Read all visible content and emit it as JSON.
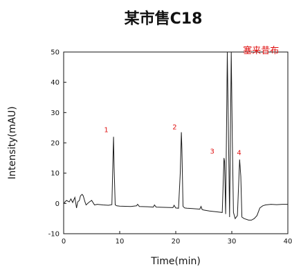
{
  "chart_data": {
    "type": "line",
    "title": "某市售C18",
    "xlabel": "Time(min)",
    "ylabel": "Intensity(mAU)",
    "xlim": [
      0,
      40
    ],
    "ylim": [
      -10,
      50
    ],
    "x_ticks": [
      "0",
      "10",
      "20",
      "30",
      "40"
    ],
    "y_ticks": [
      "-10",
      "0",
      "10",
      "20",
      "30",
      "40",
      "50"
    ],
    "grid": false,
    "line_color": "#1a1a1a",
    "label_color": "#e01010",
    "peak_labels": [
      {
        "text": "1",
        "x": 7.6,
        "y": 23.5
      },
      {
        "text": "2",
        "x": 19.8,
        "y": 24.5
      },
      {
        "text": "3",
        "x": 26.5,
        "y": 16.5
      },
      {
        "text": "4",
        "x": 31.3,
        "y": 16.0
      }
    ],
    "compound_label": {
      "text": "塞来昔布",
      "x": 32.0,
      "y": 49.5
    },
    "series": [
      {
        "x": [
          0,
          0.5,
          1.0,
          1.3,
          1.6,
          2.0,
          2.3,
          2.5,
          2.8,
          3.0,
          3.3,
          3.5,
          3.8,
          4.0,
          4.3,
          4.6,
          5.0,
          5.5,
          6.0,
          7.0,
          8.0,
          8.6,
          8.8,
          8.9,
          9.0,
          9.2,
          9.5,
          10.0,
          12.0,
          13.0,
          13.2,
          13.5,
          15.0,
          16.0,
          16.2,
          16.5,
          18.0,
          19.5,
          19.7,
          20.0,
          20.5,
          20.8,
          21.0,
          21.1,
          21.3,
          21.6,
          22.0,
          23.0,
          24.3,
          24.5,
          24.7,
          25.0,
          26.0,
          27.5,
          28.3,
          28.6,
          28.7,
          28.9,
          29.2,
          29.6,
          29.9,
          30.1,
          30.3,
          30.6,
          31.0,
          31.4,
          31.6,
          31.8,
          32.2,
          33.0,
          33.5,
          34.0,
          34.5,
          35.0,
          35.5,
          36.0,
          37.0,
          38.0,
          39.0,
          40.0
        ],
        "y": [
          0,
          1.0,
          0.5,
          1.5,
          0.3,
          2.0,
          -1.5,
          0.5,
          1.0,
          2.5,
          3.0,
          2.5,
          0.5,
          -0.5,
          0,
          0.5,
          1.0,
          -0.5,
          -0.3,
          -0.5,
          -0.6,
          -0.4,
          15.0,
          22.0,
          12.0,
          -0.5,
          -0.8,
          -0.9,
          -1.0,
          -0.8,
          -0.3,
          -1.0,
          -1.1,
          -1.2,
          -0.5,
          -1.2,
          -1.3,
          -1.4,
          -0.6,
          -1.5,
          -1.6,
          10.0,
          23.5,
          18.0,
          -1.0,
          -1.5,
          -1.6,
          -1.7,
          -1.9,
          -1.0,
          -2.0,
          -2.2,
          -2.5,
          -2.8,
          -3.0,
          15.0,
          14.0,
          -3.5,
          50.0,
          -4.5,
          50.0,
          20.0,
          -3.0,
          -5.0,
          -4.0,
          14.5,
          9.0,
          -4.5,
          -5.0,
          -5.5,
          -5.5,
          -5.0,
          -4.0,
          -1.5,
          -0.8,
          -0.5,
          -0.3,
          -0.4,
          -0.3,
          -0.3
        ]
      }
    ]
  }
}
